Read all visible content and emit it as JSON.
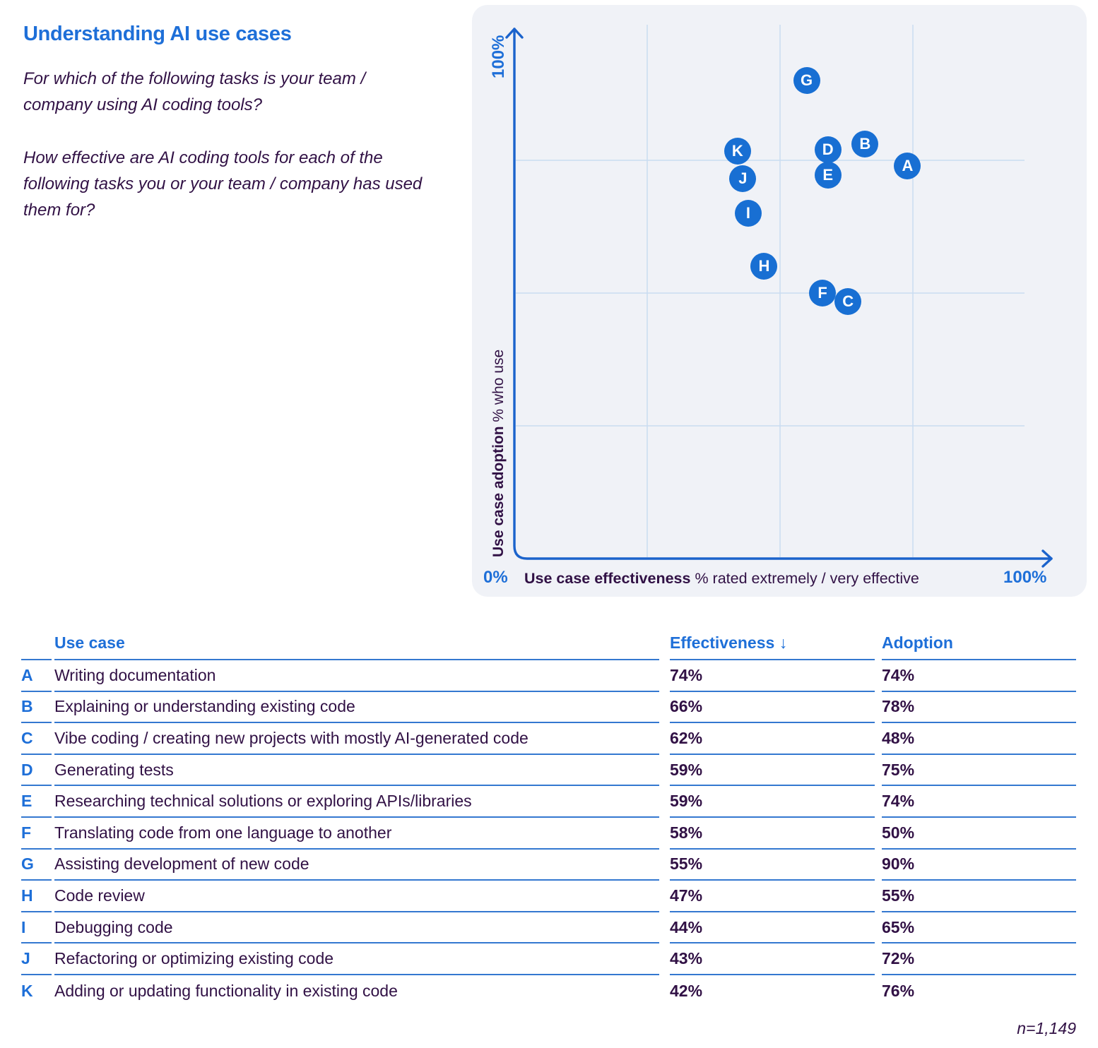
{
  "header": {
    "title": "Understanding AI use cases",
    "question1": "For which of the following tasks is your team / company using AI coding tools?",
    "question2": "How effective are AI coding tools for each of the following tasks you or your team / company has used them for?"
  },
  "chart_data": {
    "type": "scatter",
    "xlabel_bold": "Use case effectiveness",
    "xlabel_rest": " % rated extremely / very effective",
    "ylabel_bold": "Use case adoption",
    "ylabel_rest": " % who use",
    "x_min_label": "0%",
    "x_max_label": "100%",
    "y_max_label": "100%",
    "xlim": [
      0,
      100
    ],
    "ylim": [
      0,
      100
    ],
    "grid": {
      "x_ticks": [
        25,
        50,
        75
      ],
      "y_ticks": [
        25,
        50,
        75
      ],
      "visible": true
    },
    "legend": "none",
    "points": [
      {
        "label": "A",
        "x": 74,
        "y": 74
      },
      {
        "label": "B",
        "x": 66,
        "y": 78
      },
      {
        "label": "C",
        "x": 62,
        "y": 48
      },
      {
        "label": "D",
        "x": 59,
        "y": 75
      },
      {
        "label": "E",
        "x": 59,
        "y": 74
      },
      {
        "label": "F",
        "x": 58,
        "y": 50
      },
      {
        "label": "G",
        "x": 55,
        "y": 90
      },
      {
        "label": "H",
        "x": 47,
        "y": 55
      },
      {
        "label": "I",
        "x": 44,
        "y": 65
      },
      {
        "label": "J",
        "x": 43,
        "y": 72
      },
      {
        "label": "K",
        "x": 42,
        "y": 76
      }
    ]
  },
  "table": {
    "columns": {
      "use_case": "Use case",
      "effectiveness": "Effectiveness ↓",
      "adoption": "Adoption"
    },
    "rows": [
      {
        "letter": "A",
        "use_case": "Writing documentation",
        "effectiveness": "74%",
        "adoption": "74%"
      },
      {
        "letter": "B",
        "use_case": "Explaining or understanding existing code",
        "effectiveness": "66%",
        "adoption": "78%"
      },
      {
        "letter": "C",
        "use_case": "Vibe coding / creating new projects with mostly AI-generated code",
        "effectiveness": "62%",
        "adoption": "48%"
      },
      {
        "letter": "D",
        "use_case": "Generating tests",
        "effectiveness": "59%",
        "adoption": "75%"
      },
      {
        "letter": "E",
        "use_case": "Researching technical solutions or exploring APIs/libraries",
        "effectiveness": "59%",
        "adoption": "74%"
      },
      {
        "letter": "F",
        "use_case": "Translating code from one language to another",
        "effectiveness": "58%",
        "adoption": "50%"
      },
      {
        "letter": "G",
        "use_case": "Assisting development of new code",
        "effectiveness": "55%",
        "adoption": "90%"
      },
      {
        "letter": "H",
        "use_case": "Code review",
        "effectiveness": "47%",
        "adoption": "55%"
      },
      {
        "letter": "I",
        "use_case": "Debugging code",
        "effectiveness": "44%",
        "adoption": "65%"
      },
      {
        "letter": "J",
        "use_case": "Refactoring or optimizing existing code",
        "effectiveness": "43%",
        "adoption": "72%"
      },
      {
        "letter": "K",
        "use_case": "Adding or updating functionality in existing code",
        "effectiveness": "42%",
        "adoption": "76%"
      }
    ],
    "footnote": "n=1,149"
  },
  "colors": {
    "accent": "#1e6fd8",
    "ink": "#311145",
    "panel_bg": "#f0f2f7",
    "grid_line": "#c9dcf1",
    "axis": "#1b63cc",
    "point_fill": "#186fd3",
    "point_letter": "#ffffff",
    "table_line": "#3478d0",
    "background": "#ffffff"
  }
}
